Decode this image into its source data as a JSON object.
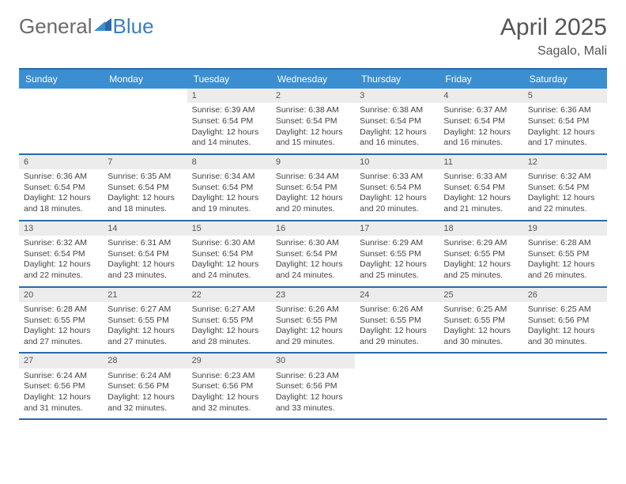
{
  "logo": {
    "general": "General",
    "blue": "Blue"
  },
  "title": "April 2025",
  "location": "Sagalo, Mali",
  "colors": {
    "header_bg": "#3b8fd1",
    "border": "#2b6aa8",
    "daynum_bg": "#ececec",
    "text": "#444",
    "title": "#555"
  },
  "daysOfWeek": [
    "Sunday",
    "Monday",
    "Tuesday",
    "Wednesday",
    "Thursday",
    "Friday",
    "Saturday"
  ],
  "weeks": [
    [
      null,
      null,
      {
        "n": "1",
        "sr": "Sunrise: 6:39 AM",
        "ss": "Sunset: 6:54 PM",
        "dl": "Daylight: 12 hours and 14 minutes."
      },
      {
        "n": "2",
        "sr": "Sunrise: 6:38 AM",
        "ss": "Sunset: 6:54 PM",
        "dl": "Daylight: 12 hours and 15 minutes."
      },
      {
        "n": "3",
        "sr": "Sunrise: 6:38 AM",
        "ss": "Sunset: 6:54 PM",
        "dl": "Daylight: 12 hours and 16 minutes."
      },
      {
        "n": "4",
        "sr": "Sunrise: 6:37 AM",
        "ss": "Sunset: 6:54 PM",
        "dl": "Daylight: 12 hours and 16 minutes."
      },
      {
        "n": "5",
        "sr": "Sunrise: 6:36 AM",
        "ss": "Sunset: 6:54 PM",
        "dl": "Daylight: 12 hours and 17 minutes."
      }
    ],
    [
      {
        "n": "6",
        "sr": "Sunrise: 6:36 AM",
        "ss": "Sunset: 6:54 PM",
        "dl": "Daylight: 12 hours and 18 minutes."
      },
      {
        "n": "7",
        "sr": "Sunrise: 6:35 AM",
        "ss": "Sunset: 6:54 PM",
        "dl": "Daylight: 12 hours and 18 minutes."
      },
      {
        "n": "8",
        "sr": "Sunrise: 6:34 AM",
        "ss": "Sunset: 6:54 PM",
        "dl": "Daylight: 12 hours and 19 minutes."
      },
      {
        "n": "9",
        "sr": "Sunrise: 6:34 AM",
        "ss": "Sunset: 6:54 PM",
        "dl": "Daylight: 12 hours and 20 minutes."
      },
      {
        "n": "10",
        "sr": "Sunrise: 6:33 AM",
        "ss": "Sunset: 6:54 PM",
        "dl": "Daylight: 12 hours and 20 minutes."
      },
      {
        "n": "11",
        "sr": "Sunrise: 6:33 AM",
        "ss": "Sunset: 6:54 PM",
        "dl": "Daylight: 12 hours and 21 minutes."
      },
      {
        "n": "12",
        "sr": "Sunrise: 6:32 AM",
        "ss": "Sunset: 6:54 PM",
        "dl": "Daylight: 12 hours and 22 minutes."
      }
    ],
    [
      {
        "n": "13",
        "sr": "Sunrise: 6:32 AM",
        "ss": "Sunset: 6:54 PM",
        "dl": "Daylight: 12 hours and 22 minutes."
      },
      {
        "n": "14",
        "sr": "Sunrise: 6:31 AM",
        "ss": "Sunset: 6:54 PM",
        "dl": "Daylight: 12 hours and 23 minutes."
      },
      {
        "n": "15",
        "sr": "Sunrise: 6:30 AM",
        "ss": "Sunset: 6:54 PM",
        "dl": "Daylight: 12 hours and 24 minutes."
      },
      {
        "n": "16",
        "sr": "Sunrise: 6:30 AM",
        "ss": "Sunset: 6:54 PM",
        "dl": "Daylight: 12 hours and 24 minutes."
      },
      {
        "n": "17",
        "sr": "Sunrise: 6:29 AM",
        "ss": "Sunset: 6:55 PM",
        "dl": "Daylight: 12 hours and 25 minutes."
      },
      {
        "n": "18",
        "sr": "Sunrise: 6:29 AM",
        "ss": "Sunset: 6:55 PM",
        "dl": "Daylight: 12 hours and 25 minutes."
      },
      {
        "n": "19",
        "sr": "Sunrise: 6:28 AM",
        "ss": "Sunset: 6:55 PM",
        "dl": "Daylight: 12 hours and 26 minutes."
      }
    ],
    [
      {
        "n": "20",
        "sr": "Sunrise: 6:28 AM",
        "ss": "Sunset: 6:55 PM",
        "dl": "Daylight: 12 hours and 27 minutes."
      },
      {
        "n": "21",
        "sr": "Sunrise: 6:27 AM",
        "ss": "Sunset: 6:55 PM",
        "dl": "Daylight: 12 hours and 27 minutes."
      },
      {
        "n": "22",
        "sr": "Sunrise: 6:27 AM",
        "ss": "Sunset: 6:55 PM",
        "dl": "Daylight: 12 hours and 28 minutes."
      },
      {
        "n": "23",
        "sr": "Sunrise: 6:26 AM",
        "ss": "Sunset: 6:55 PM",
        "dl": "Daylight: 12 hours and 29 minutes."
      },
      {
        "n": "24",
        "sr": "Sunrise: 6:26 AM",
        "ss": "Sunset: 6:55 PM",
        "dl": "Daylight: 12 hours and 29 minutes."
      },
      {
        "n": "25",
        "sr": "Sunrise: 6:25 AM",
        "ss": "Sunset: 6:55 PM",
        "dl": "Daylight: 12 hours and 30 minutes."
      },
      {
        "n": "26",
        "sr": "Sunrise: 6:25 AM",
        "ss": "Sunset: 6:56 PM",
        "dl": "Daylight: 12 hours and 30 minutes."
      }
    ],
    [
      {
        "n": "27",
        "sr": "Sunrise: 6:24 AM",
        "ss": "Sunset: 6:56 PM",
        "dl": "Daylight: 12 hours and 31 minutes."
      },
      {
        "n": "28",
        "sr": "Sunrise: 6:24 AM",
        "ss": "Sunset: 6:56 PM",
        "dl": "Daylight: 12 hours and 32 minutes."
      },
      {
        "n": "29",
        "sr": "Sunrise: 6:23 AM",
        "ss": "Sunset: 6:56 PM",
        "dl": "Daylight: 12 hours and 32 minutes."
      },
      {
        "n": "30",
        "sr": "Sunrise: 6:23 AM",
        "ss": "Sunset: 6:56 PM",
        "dl": "Daylight: 12 hours and 33 minutes."
      },
      null,
      null,
      null
    ]
  ]
}
